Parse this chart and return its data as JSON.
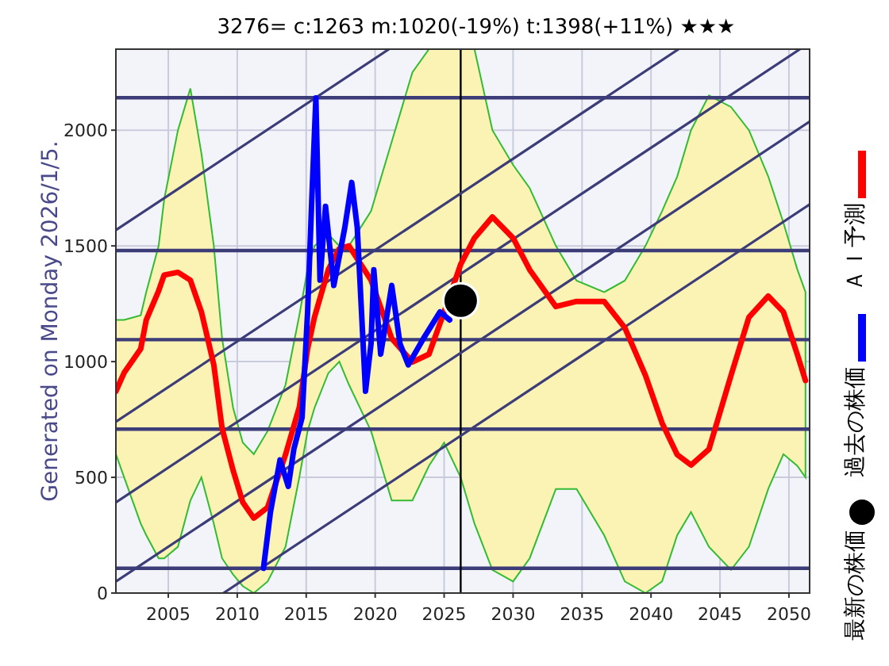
{
  "chart_data": {
    "type": "line",
    "title": "3276= c:1263 m:1020(-19%) t:1398(+11%) ★★★",
    "ylabel": "Generated on Monday 2026/1/5.",
    "xlim": [
      2001.2,
      2051.5
    ],
    "ylim": [
      0,
      2350
    ],
    "xticks": [
      2005,
      2010,
      2015,
      2020,
      2025,
      2030,
      2035,
      2040,
      2045,
      2050
    ],
    "yticks": [
      0,
      500,
      1000,
      1500,
      2000
    ],
    "grid": true,
    "legend": "right",
    "ref_lines": [
      {
        "axis": "y",
        "value": 2140
      },
      {
        "axis": "y",
        "value": 1480
      },
      {
        "axis": "y",
        "value": 1095
      },
      {
        "axis": "y",
        "value": 708
      },
      {
        "axis": "y",
        "value": 107
      },
      {
        "axis": "x",
        "value": 2026.2,
        "color": "#000000"
      }
    ],
    "series": [
      {
        "name": "ＡＩ予測",
        "color": "#ff0000",
        "x": [
          2001.2,
          2001.8,
          2003.0,
          2003.4,
          2004.3,
          2004.7,
          2005.7,
          2006.6,
          2007.4,
          2008.3,
          2008.9,
          2009.7,
          2010.4,
          2011.2,
          2012.2,
          2013.5,
          2014.5,
          2015.1,
          2015.6,
          2016.6,
          2017.4,
          2018.1,
          2019.7,
          2021.2,
          2022.7,
          2023.9,
          2025.0,
          2026.2,
          2027.2,
          2028.5,
          2030.0,
          2031.2,
          2033.1,
          2034.6,
          2036.6,
          2038.1,
          2039.6,
          2040.8,
          2041.9,
          2042.9,
          2044.2,
          2045.8,
          2047.1,
          2048.5,
          2049.6,
          2050.6,
          2051.2
        ],
        "values": [
          872,
          952,
          1055,
          1180,
          1306,
          1374,
          1386,
          1352,
          1215,
          986,
          712,
          530,
          392,
          324,
          370,
          598,
          803,
          1055,
          1192,
          1397,
          1488,
          1500,
          1352,
          1100,
          998,
          1032,
          1215,
          1420,
          1534,
          1625,
          1534,
          1397,
          1238,
          1260,
          1260,
          1146,
          940,
          735,
          598,
          553,
          621,
          940,
          1192,
          1283,
          1215,
          1032,
          918
        ],
        "upper": [
          1180,
          1180,
          1200,
          1300,
          1500,
          1700,
          2000,
          2180,
          1900,
          1500,
          1100,
          800,
          650,
          600,
          700,
          900,
          1200,
          1400,
          1500,
          1550,
          1500,
          1500,
          1650,
          1950,
          2250,
          2350,
          2350,
          2350,
          2350,
          2000,
          1850,
          1750,
          1500,
          1350,
          1300,
          1350,
          1500,
          1650,
          1800,
          2000,
          2150,
          2100,
          2000,
          1800,
          1600,
          1400,
          1300
        ],
        "lower": [
          600,
          500,
          300,
          250,
          150,
          150,
          200,
          400,
          500,
          300,
          150,
          80,
          30,
          0,
          50,
          200,
          500,
          700,
          800,
          950,
          1000,
          900,
          700,
          400,
          400,
          550,
          650,
          500,
          300,
          100,
          50,
          150,
          450,
          450,
          250,
          50,
          0,
          50,
          250,
          350,
          200,
          100,
          200,
          450,
          600,
          550,
          500
        ]
      },
      {
        "name": "過去の株価",
        "color": "#0000ff",
        "x": [
          2011.9,
          2012.4,
          2013.1,
          2013.7,
          2014.1,
          2014.7,
          2015.1,
          2015.4,
          2015.7,
          2016.0,
          2016.4,
          2017.0,
          2017.8,
          2018.3,
          2018.7,
          2019.3,
          2019.7,
          2019.9,
          2020.4,
          2021.2,
          2021.8,
          2022.4,
          2023.5,
          2024.7,
          2025.4
        ],
        "values": [
          107,
          347,
          575,
          461,
          621,
          758,
          1215,
          1694,
          2139,
          1352,
          1671,
          1329,
          1580,
          1774,
          1580,
          872,
          1077,
          1397,
          1032,
          1329,
          1077,
          986,
          1100,
          1215,
          1180
        ]
      },
      {
        "name": "最新の株価",
        "type": "scatter",
        "marker": "circle",
        "color": "#000000",
        "x": [
          2026.2
        ],
        "values": [
          1263
        ]
      },
      {
        "type": "line",
        "color": "#3c3c78",
        "x": [
          2001.2,
          2021.0
        ],
        "values": [
          1568,
          2350
        ]
      },
      {
        "type": "line",
        "color": "#3c3c78",
        "x": [
          2001.2,
          2042.0
        ],
        "values": [
          740,
          2350
        ]
      },
      {
        "type": "line",
        "color": "#3c3c78",
        "x": [
          2001.2,
          2050.8
        ],
        "values": [
          392,
          2350
        ]
      },
      {
        "type": "line",
        "color": "#3c3c78",
        "x": [
          2001.2,
          2051.5
        ],
        "values": [
          50,
          2037
        ]
      },
      {
        "type": "line",
        "color": "#3c3c78",
        "x": [
          2009.0,
          2051.5
        ],
        "values": [
          0,
          1679
        ]
      }
    ]
  }
}
